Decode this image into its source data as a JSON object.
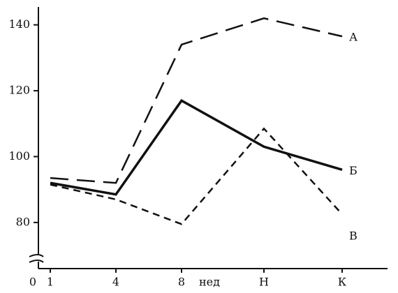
{
  "chart_data": {
    "type": "line",
    "categories": [
      "1",
      "4",
      "8",
      "Н",
      "К"
    ],
    "x_unit": "нед",
    "origin_label": "0",
    "ylim": [
      66,
      145
    ],
    "yticks": [
      80,
      100,
      120,
      140
    ],
    "series": [
      {
        "name": "А",
        "color": "#111111",
        "dash": "long",
        "values": [
          93.5,
          92,
          134,
          142,
          136.5
        ]
      },
      {
        "name": "Б",
        "color": "#111111",
        "dash": "solid",
        "values": [
          92,
          88.5,
          117,
          103,
          96
        ]
      },
      {
        "name": "В",
        "color": "#111111",
        "dash": "short",
        "values": [
          91.5,
          87,
          79.5,
          108.5,
          82.5
        ]
      }
    ]
  }
}
